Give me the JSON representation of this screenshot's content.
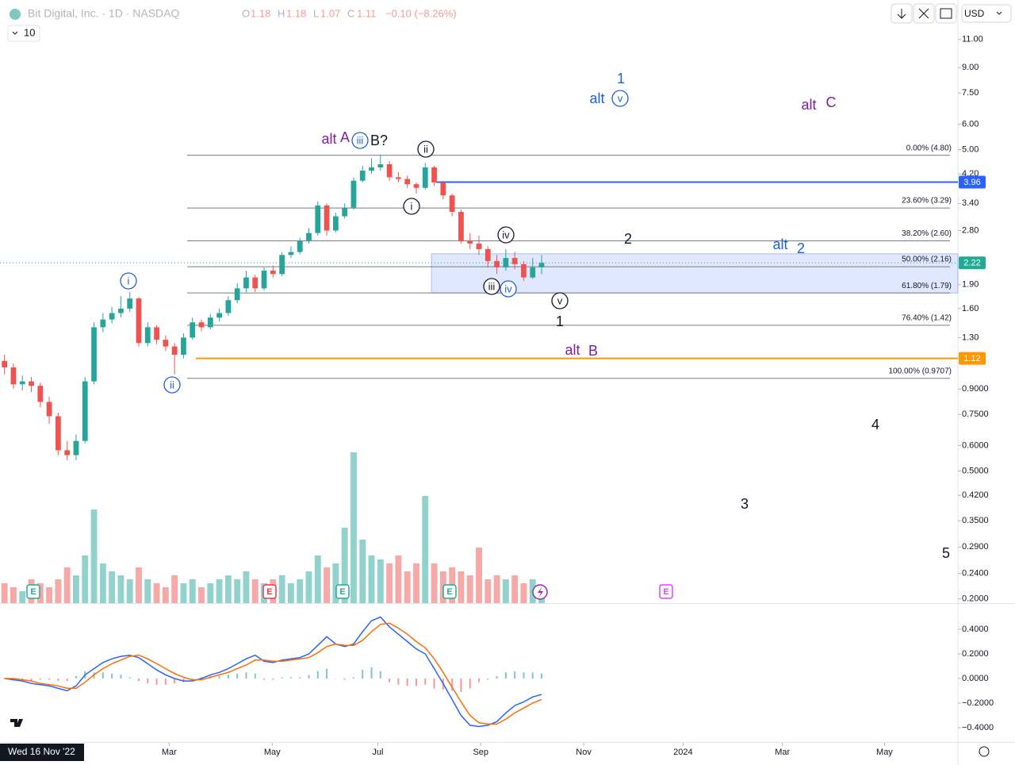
{
  "chart_data": {
    "type": "candlestick",
    "header": {
      "symbol": "Bit Digital, Inc. · 1D · NASDAQ",
      "o": "O",
      "o_value": "1.18",
      "h": "H",
      "h_value": "1.18",
      "l": "L",
      "l_value": "1.07",
      "c": "C",
      "c_value": "1.11",
      "change": "−0.10 (−8.26%)",
      "interval_box": "10",
      "currency": "USD"
    },
    "crosshair_date": "Wed 16 Nov '22",
    "log_scale": true,
    "grid": false,
    "up_color": "#26a69a",
    "down_color": "#ef5350",
    "open": [
      1.1,
      1.05,
      0.93,
      0.95,
      0.92,
      0.82,
      0.74,
      0.58,
      0.56,
      0.62,
      0.95,
      1.4,
      1.48,
      1.55,
      1.6,
      1.72,
      1.25,
      1.4,
      1.28,
      1.22,
      1.15,
      1.3,
      1.45,
      1.4,
      1.5,
      1.55,
      1.7,
      1.85,
      2.0,
      1.85,
      2.1,
      2.05,
      2.35,
      2.4,
      2.6,
      2.75,
      3.35,
      2.8,
      3.1,
      3.3,
      4.0,
      4.3,
      4.4,
      4.5,
      4.1,
      4.05,
      3.9,
      3.8,
      4.4,
      3.95,
      3.6,
      3.2,
      2.6,
      2.55,
      2.45,
      2.25,
      2.15,
      2.3,
      2.2,
      2.0,
      2.15
    ],
    "high": [
      1.15,
      1.08,
      0.99,
      0.98,
      0.94,
      0.85,
      0.76,
      0.62,
      0.65,
      0.98,
      1.45,
      1.55,
      1.62,
      1.75,
      1.8,
      1.74,
      1.45,
      1.42,
      1.32,
      1.25,
      1.34,
      1.5,
      1.48,
      1.54,
      1.6,
      1.75,
      1.92,
      2.1,
      2.04,
      2.15,
      2.18,
      2.4,
      2.5,
      2.66,
      2.85,
      3.45,
      3.4,
      3.18,
      3.4,
      4.1,
      4.45,
      4.7,
      4.8,
      4.6,
      4.25,
      4.15,
      3.95,
      4.55,
      4.45,
      4.0,
      3.65,
      3.25,
      2.75,
      2.7,
      2.5,
      2.35,
      2.45,
      2.4,
      2.25,
      2.3,
      2.35
    ],
    "low": [
      1.0,
      0.9,
      0.89,
      0.88,
      0.79,
      0.7,
      0.56,
      0.54,
      0.54,
      0.61,
      0.93,
      1.35,
      1.44,
      1.5,
      1.56,
      1.22,
      1.22,
      1.24,
      1.18,
      1.0,
      1.12,
      1.28,
      1.36,
      1.38,
      1.46,
      1.52,
      1.66,
      1.8,
      1.8,
      1.82,
      2.0,
      2.02,
      2.3,
      2.36,
      2.55,
      2.7,
      2.7,
      2.76,
      3.05,
      3.25,
      3.95,
      4.2,
      4.3,
      4.0,
      3.95,
      3.8,
      3.65,
      3.75,
      3.85,
      3.5,
      3.1,
      2.55,
      2.45,
      2.35,
      2.15,
      2.05,
      2.1,
      2.12,
      1.95,
      1.98,
      2.05
    ],
    "close": [
      1.05,
      0.93,
      0.95,
      0.92,
      0.82,
      0.74,
      0.58,
      0.56,
      0.62,
      0.95,
      1.4,
      1.48,
      1.55,
      1.6,
      1.72,
      1.25,
      1.4,
      1.28,
      1.22,
      1.15,
      1.3,
      1.45,
      1.4,
      1.5,
      1.55,
      1.7,
      1.85,
      2.0,
      1.85,
      2.1,
      2.05,
      2.35,
      2.4,
      2.6,
      2.75,
      3.35,
      2.8,
      3.1,
      3.3,
      4.0,
      4.3,
      4.4,
      4.5,
      4.1,
      4.05,
      3.9,
      3.8,
      4.4,
      3.95,
      3.6,
      3.2,
      2.6,
      2.55,
      2.45,
      2.25,
      2.15,
      2.3,
      2.2,
      2.0,
      2.15,
      2.22
    ],
    "volume": [
      25,
      20,
      15,
      30,
      25,
      20,
      30,
      45,
      35,
      60,
      118,
      50,
      40,
      35,
      30,
      45,
      30,
      25,
      20,
      35,
      25,
      30,
      20,
      25,
      30,
      35,
      30,
      40,
      30,
      25,
      30,
      35,
      25,
      30,
      40,
      60,
      45,
      50,
      95,
      190,
      80,
      60,
      55,
      50,
      60,
      40,
      50,
      135,
      50,
      40,
      45,
      40,
      35,
      70,
      30,
      35,
      30,
      35,
      25,
      30,
      20
    ],
    "xlim": [
      -0.5,
      106.5
    ],
    "xticks": [
      {
        "value": 18.4,
        "label": "Mar"
      },
      {
        "value": 29.9,
        "label": "May"
      },
      {
        "value": 41.7,
        "label": "Jul"
      },
      {
        "value": 53.2,
        "label": "Sep"
      },
      {
        "value": 64.7,
        "label": "Nov"
      },
      {
        "value": 75.8,
        "label": "2024"
      },
      {
        "value": 86.9,
        "label": "Mar"
      },
      {
        "value": 98.3,
        "label": "May"
      }
    ],
    "ylim": [
      0.194,
      14.6
    ],
    "yticks": [
      {
        "value": 11,
        "label": "11.00"
      },
      {
        "value": 9,
        "label": "9.00"
      },
      {
        "value": 7.5,
        "label": "7.50"
      },
      {
        "value": 6,
        "label": "6.00"
      },
      {
        "value": 5,
        "label": "5.00"
      },
      {
        "value": 4.2,
        "label": "4.20"
      },
      {
        "value": 3.4,
        "label": "3.40"
      },
      {
        "value": 2.8,
        "label": "2.80"
      },
      {
        "value": 1.9,
        "label": "1.90"
      },
      {
        "value": 1.6,
        "label": "1.60"
      },
      {
        "value": 1.3,
        "label": "1.30"
      },
      {
        "value": 0.9,
        "label": "0.9000"
      },
      {
        "value": 0.75,
        "label": "0.7500"
      },
      {
        "value": 0.6,
        "label": "0.6000"
      },
      {
        "value": 0.5,
        "label": "0.5000"
      },
      {
        "value": 0.42,
        "label": "0.4200"
      },
      {
        "value": 0.35,
        "label": "0.3500"
      },
      {
        "value": 0.29,
        "label": "0.2900"
      },
      {
        "value": 0.24,
        "label": "0.2400"
      },
      {
        "value": 0.2,
        "label": "0.2000"
      }
    ],
    "fib_levels": [
      {
        "value": 4.8,
        "label": "0.00% (4.80)"
      },
      {
        "value": 3.29,
        "label": "23.60% (3.29)"
      },
      {
        "value": 2.6,
        "label": "38.20% (2.60)"
      },
      {
        "value": 2.16,
        "label": "50.00% (2.16)"
      },
      {
        "value": 1.79,
        "label": "61.80% (1.79)"
      },
      {
        "value": 1.42,
        "label": "76.40% (1.42)"
      },
      {
        "value": 0.9707,
        "label": "100.00% (0.9707)"
      }
    ],
    "zone": [
      2.37,
      1.79
    ],
    "price_lines": [
      {
        "value": 3.96,
        "color": "#2962ff"
      },
      {
        "value": 1.12,
        "color": "#ff9800"
      }
    ],
    "last_price": {
      "value": 2.22,
      "color": "#22ab94"
    },
    "annotations": [
      "1",
      "alt",
      "v",
      "alt",
      "C",
      "alt",
      "A",
      "iii",
      "B?",
      "ii",
      "i",
      "iv",
      "2",
      "alt",
      "2",
      "iii",
      "iv",
      "v",
      "1",
      "i",
      "ii",
      "alt",
      "B",
      "4",
      "3",
      "5"
    ],
    "earnings": [
      "E",
      "E",
      "E",
      "E",
      "E"
    ],
    "macd": {
      "ylim": [
        -0.516,
        0.6
      ],
      "yticks": [
        {
          "value": 0.4,
          "label": "0.4000"
        },
        {
          "value": 0.2,
          "label": "0.2000"
        },
        {
          "value": 0,
          "label": "0.0000"
        },
        {
          "value": -0.2,
          "label": "−0.2000"
        },
        {
          "value": -0.4,
          "label": "−0.4000"
        }
      ],
      "series": [
        {
          "color": "#2962ff",
          "values": [
            0.0,
            -0.01,
            -0.02,
            -0.04,
            -0.05,
            -0.06,
            -0.08,
            -0.1,
            -0.06,
            0.03,
            0.08,
            0.13,
            0.16,
            0.18,
            0.19,
            0.17,
            0.12,
            0.07,
            0.03,
            0.0,
            -0.02,
            -0.02,
            0.0,
            0.03,
            0.05,
            0.08,
            0.12,
            0.16,
            0.19,
            0.14,
            0.13,
            0.15,
            0.16,
            0.17,
            0.2,
            0.27,
            0.34,
            0.28,
            0.26,
            0.28,
            0.38,
            0.47,
            0.5,
            0.42,
            0.36,
            0.3,
            0.24,
            0.2,
            0.08,
            -0.04,
            -0.17,
            -0.3,
            -0.38,
            -0.39,
            -0.38,
            -0.35,
            -0.28,
            -0.22,
            -0.19,
            -0.15,
            -0.13
          ]
        },
        {
          "color": "#ff6d00",
          "values": [
            0.0,
            0.0,
            -0.01,
            -0.02,
            -0.04,
            -0.05,
            -0.06,
            -0.08,
            -0.08,
            -0.03,
            0.03,
            0.08,
            0.12,
            0.15,
            0.18,
            0.19,
            0.16,
            0.12,
            0.08,
            0.04,
            0.01,
            -0.01,
            -0.01,
            0.01,
            0.03,
            0.05,
            0.08,
            0.11,
            0.15,
            0.15,
            0.14,
            0.14,
            0.15,
            0.16,
            0.17,
            0.21,
            0.26,
            0.28,
            0.27,
            0.27,
            0.31,
            0.38,
            0.44,
            0.45,
            0.41,
            0.36,
            0.3,
            0.25,
            0.16,
            0.05,
            -0.07,
            -0.19,
            -0.3,
            -0.36,
            -0.37,
            -0.37,
            -0.33,
            -0.28,
            -0.24,
            -0.2,
            -0.17
          ]
        }
      ],
      "histogram": [
        0,
        -0.01,
        -0.01,
        -0.02,
        -0.01,
        -0.01,
        -0.02,
        -0.02,
        0.02,
        0.06,
        0.05,
        0.05,
        0.04,
        0.03,
        0.01,
        -0.02,
        -0.04,
        -0.05,
        -0.05,
        -0.04,
        -0.03,
        -0.01,
        0.01,
        0.02,
        0.02,
        0.03,
        0.04,
        0.05,
        0.04,
        -0.01,
        -0.01,
        0.01,
        0.01,
        0.01,
        0.03,
        0.06,
        0.08,
        0,
        -0.01,
        0.01,
        0.07,
        0.09,
        0.06,
        -0.03,
        -0.05,
        -0.06,
        -0.06,
        -0.05,
        -0.08,
        -0.09,
        -0.1,
        -0.11,
        -0.08,
        -0.03,
        -0.01,
        0.02,
        0.05,
        0.06,
        0.05,
        0.05,
        0.04
      ]
    }
  }
}
